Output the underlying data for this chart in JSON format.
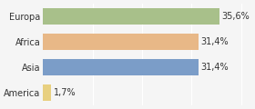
{
  "categories": [
    "America",
    "Asia",
    "Africa",
    "Europa"
  ],
  "values": [
    1.7,
    31.4,
    31.4,
    35.6
  ],
  "labels": [
    "1,7%",
    "31,4%",
    "31,4%",
    "35,6%"
  ],
  "bar_colors": [
    "#e8d080",
    "#7b9dc8",
    "#e8b887",
    "#a8c08a"
  ],
  "background_color": "#f5f5f5",
  "xlim": [
    0,
    42
  ],
  "bar_height": 0.62,
  "label_fontsize": 7,
  "tick_fontsize": 7
}
